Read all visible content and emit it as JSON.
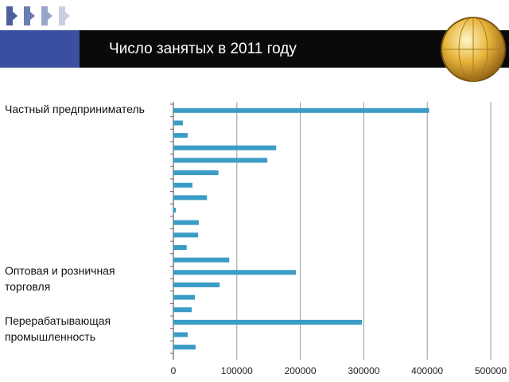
{
  "chart_data": {
    "type": "bar",
    "orientation": "horizontal",
    "title": "Число занятых в 2011 году",
    "categories": [
      "Частный предприниматель",
      null,
      null,
      null,
      null,
      null,
      null,
      null,
      null,
      null,
      null,
      null,
      null,
      "Оптовая и розничная торговля",
      null,
      null,
      null,
      "Перерабатывающая промышленность",
      null,
      null
    ],
    "values": [
      403000,
      15000,
      22500,
      162000,
      148000,
      71000,
      30000,
      53000,
      4000,
      40000,
      39000,
      21000,
      88000,
      193000,
      73000,
      34000,
      29000,
      297000,
      22500,
      35000
    ],
    "color": "#3b9cc6",
    "xlim": [
      0,
      500000
    ],
    "xticks": [
      0,
      100000,
      200000,
      300000,
      400000,
      500000
    ],
    "grid": true
  }
}
